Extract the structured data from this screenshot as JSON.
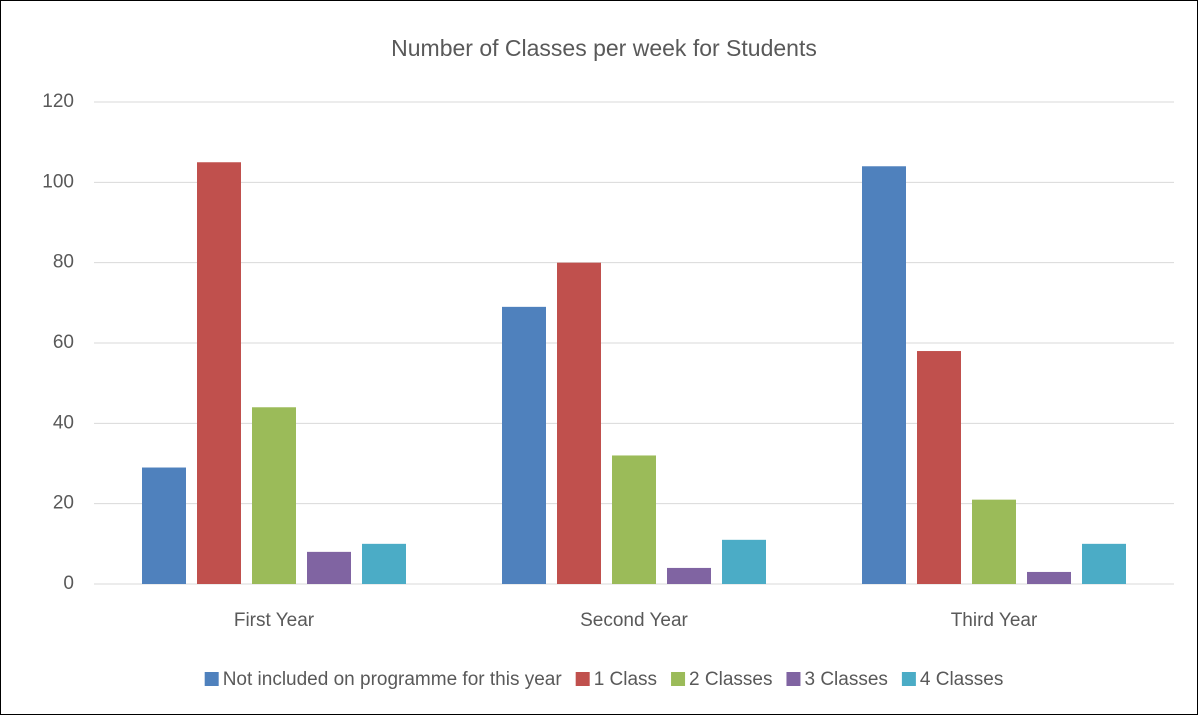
{
  "chart_data": {
    "type": "bar",
    "title": "Number of Classes per week for Students",
    "categories": [
      "First Year",
      "Second Year",
      "Third Year"
    ],
    "series": [
      {
        "name": "Not included on programme for this year",
        "color": "#4f81bd",
        "values": [
          29,
          69,
          104
        ]
      },
      {
        "name": "1 Class",
        "color": "#c0504d",
        "values": [
          105,
          80,
          58
        ]
      },
      {
        "name": "2 Classes",
        "color": "#9bbb59",
        "values": [
          44,
          32,
          21
        ]
      },
      {
        "name": "3 Classes",
        "color": "#8064a2",
        "values": [
          8,
          4,
          3
        ]
      },
      {
        "name": "4 Classes",
        "color": "#4bacc6",
        "values": [
          10,
          11,
          10
        ]
      }
    ],
    "ylim": [
      0,
      120
    ],
    "yticks": [
      0,
      20,
      40,
      60,
      80,
      100,
      120
    ],
    "grid": true,
    "legend": "bottom"
  }
}
